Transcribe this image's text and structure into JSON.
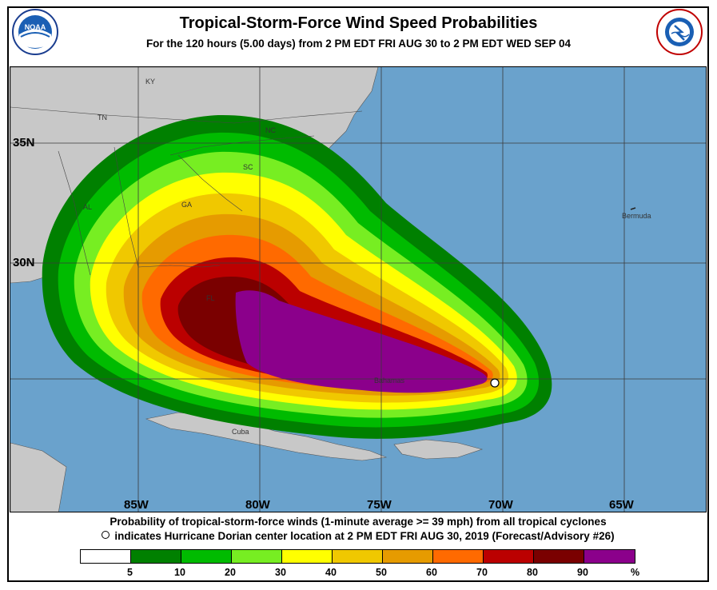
{
  "header": {
    "title": "Tropical-Storm-Force Wind Speed Probabilities",
    "subtitle": "For the 120 hours (5.00 days) from 2 PM EDT FRI AUG 30 to 2 PM EDT WED SEP 04"
  },
  "logos": {
    "left": "NOAA",
    "right": "NATIONAL WEATHER SERVICE"
  },
  "map": {
    "longitude_labels": [
      "85W",
      "80W",
      "75W",
      "70W",
      "65W"
    ],
    "latitude_labels": [
      "35N",
      "30N"
    ],
    "state_labels": [
      "KY",
      "TN",
      "NC",
      "SC",
      "GA",
      "AL",
      "FL"
    ],
    "place_labels": [
      "Bermuda",
      "Bahamas",
      "Cuba"
    ],
    "storm_center": "Hurricane Dorian center",
    "colors": {
      "ocean": "#6aa2cc",
      "land": "#c8c8c8",
      "p5": "#008000",
      "p10": "#00bb00",
      "p20": "#77ee22",
      "p30": "#ffff00",
      "p40": "#f0c800",
      "p50": "#e69b00",
      "p60": "#ff6a00",
      "p70": "#bb0000",
      "p80": "#7a0000",
      "p90": "#8b008b"
    }
  },
  "footer": {
    "line1": "Probability of tropical-storm-force winds (1-minute average >= 39 mph) from all tropical cyclones",
    "line2": "indicates Hurricane Dorian center location at 2 PM EDT FRI AUG 30, 2019 (Forecast/Advisory #26)"
  },
  "legend": {
    "colors": [
      "#ffffff",
      "#008000",
      "#00bb00",
      "#77ee22",
      "#ffff00",
      "#f0c800",
      "#e69b00",
      "#ff6a00",
      "#bb0000",
      "#7a0000",
      "#8b008b"
    ],
    "ticks": [
      "5",
      "10",
      "20",
      "30",
      "40",
      "50",
      "60",
      "70",
      "80",
      "90",
      "%"
    ]
  }
}
